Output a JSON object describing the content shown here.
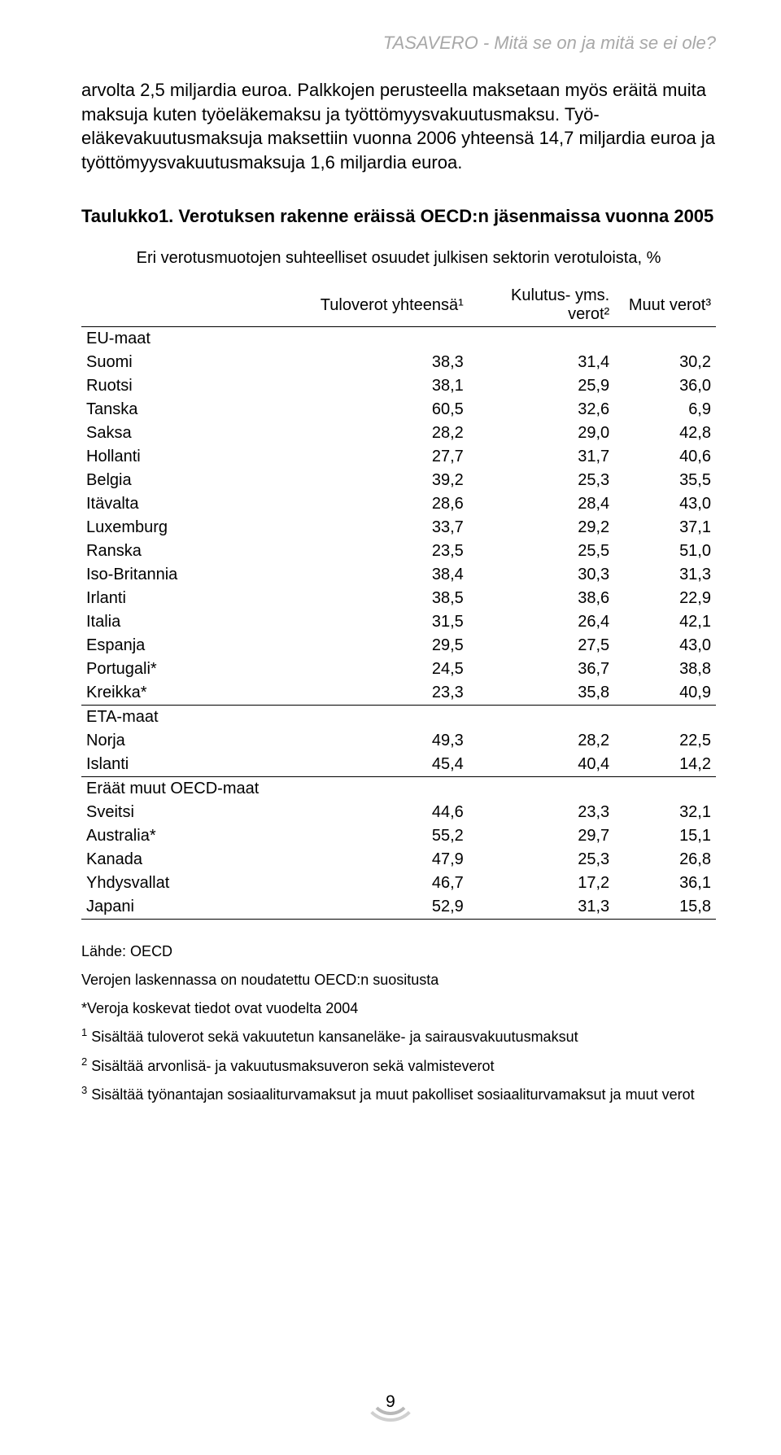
{
  "header_title": "TASAVERO - Mitä se on ja mitä se ei ole?",
  "paragraph1": "arvolta 2,5 miljardia euroa. Palkkojen perusteella maksetaan myös eräitä muita maksuja kuten työeläkemaksu ja työttömyysvakuutusmaksu. Työ­eläkevakuutusmaksuja maksettiin vuonna 2006 yhteensä 14,7 miljardia euroa ja työttömyysvakuutusmaksuja 1,6 miljardia euroa.",
  "table_title": "Taulukko1. Verotuksen rakenne eräissä OECD:n jäsenmaissa vuonna 2005",
  "subtitle": "Eri verotusmuotojen suhteelliset osuudet julkisen sektorin verotuloista, %",
  "table": {
    "columns": [
      "",
      "Tuloverot yhteensä¹",
      "Kulutus- yms. verot²",
      "Muut verot³"
    ],
    "groups": [
      {
        "name": "EU-maat",
        "rows": [
          [
            "Suomi",
            "38,3",
            "31,4",
            "30,2"
          ],
          [
            "Ruotsi",
            "38,1",
            "25,9",
            "36,0"
          ],
          [
            "Tanska",
            "60,5",
            "32,6",
            "6,9"
          ],
          [
            "Saksa",
            "28,2",
            "29,0",
            "42,8"
          ],
          [
            "Hollanti",
            "27,7",
            "31,7",
            "40,6"
          ],
          [
            "Belgia",
            "39,2",
            "25,3",
            "35,5"
          ],
          [
            "Itävalta",
            "28,6",
            "28,4",
            "43,0"
          ],
          [
            "Luxemburg",
            "33,7",
            "29,2",
            "37,1"
          ],
          [
            "Ranska",
            "23,5",
            "25,5",
            "51,0"
          ],
          [
            "Iso-Britannia",
            "38,4",
            "30,3",
            "31,3"
          ],
          [
            "Irlanti",
            "38,5",
            "38,6",
            "22,9"
          ],
          [
            "Italia",
            "31,5",
            "26,4",
            "42,1"
          ],
          [
            "Espanja",
            "29,5",
            "27,5",
            "43,0"
          ],
          [
            "Portugali*",
            "24,5",
            "36,7",
            "38,8"
          ],
          [
            "Kreikka*",
            "23,3",
            "35,8",
            "40,9"
          ]
        ]
      },
      {
        "name": "ETA-maat",
        "rows": [
          [
            "Norja",
            "49,3",
            "28,2",
            "22,5"
          ],
          [
            "Islanti",
            "45,4",
            "40,4",
            "14,2"
          ]
        ]
      },
      {
        "name": "Eräät muut OECD-maat",
        "rows": [
          [
            "Sveitsi",
            "44,6",
            "23,3",
            "32,1"
          ],
          [
            "Australia*",
            "55,2",
            "29,7",
            "15,1"
          ],
          [
            "Kanada",
            "47,9",
            "25,3",
            "26,8"
          ],
          [
            "Yhdysvallat",
            "46,7",
            "17,2",
            "36,1"
          ],
          [
            "Japani",
            "52,9",
            "31,3",
            "15,8"
          ]
        ]
      }
    ],
    "col_widths": [
      "35%",
      "26%",
      "23%",
      "16%"
    ]
  },
  "footnotes": {
    "source": "Lähde: OECD",
    "note1": "Verojen laskennassa on noudatettu OECD:n suositusta",
    "note2": "*Veroja koskevat tiedot ovat vuodelta 2004",
    "fn1": "Sisältää tuloverot sekä vakuutetun kansaneläke- ja sairausvakuutusmaksut",
    "fn2": "Sisältää arvonlisä- ja vakuutusmaksuveron sekä valmisteverot",
    "fn3": "Sisältää työnantajan sosiaaliturvamaksut ja muut pakolliset sosiaaliturvamaksut ja muut verot"
  },
  "page_number": "9"
}
